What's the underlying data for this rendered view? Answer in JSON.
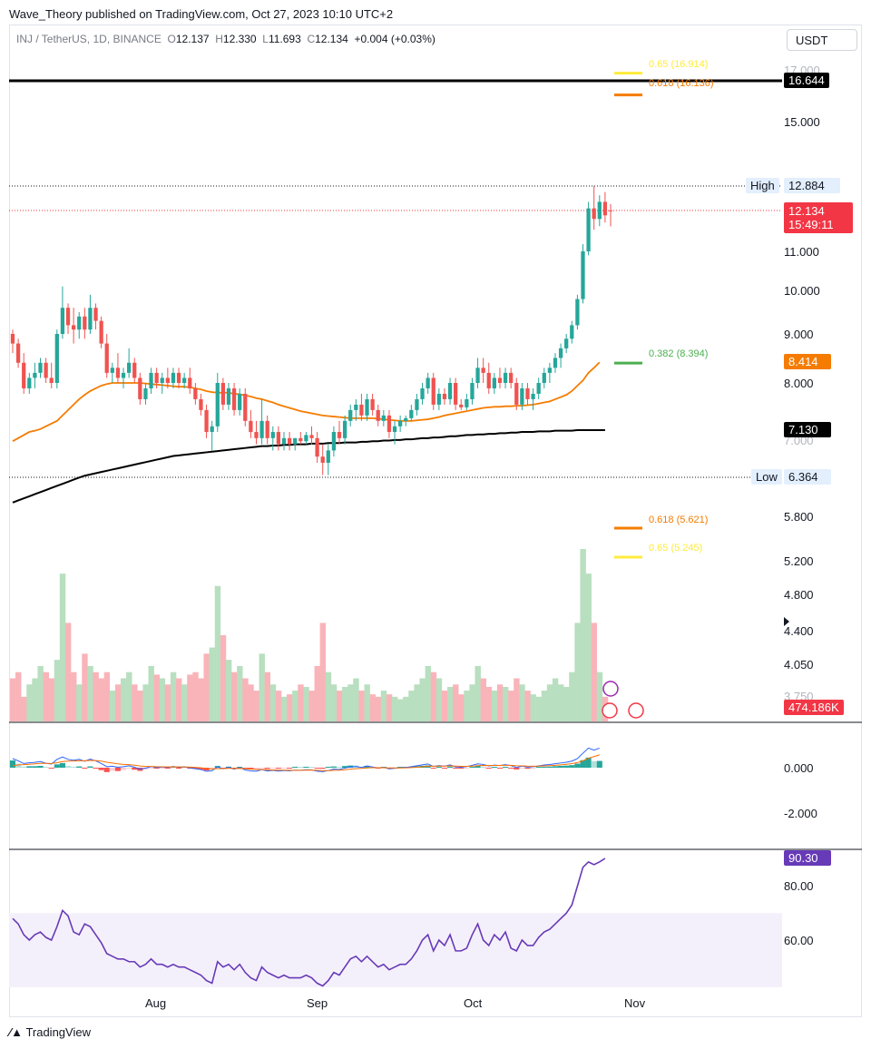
{
  "header": {
    "publisher": "Wave_Theory published on TradingView.com, Oct 27, 2023 10:10 UTC+2"
  },
  "legend": {
    "symbol": "INJ / TetherUS, 1D, BINANCE",
    "open": "12.137",
    "high": "12.330",
    "low": "11.693",
    "close": "12.134",
    "change": "+0.004 (+0.03%)"
  },
  "currency_button": "USDT",
  "footer": {
    "brand": "TradingView"
  },
  "colors": {
    "up": "#26a69a",
    "down": "#ef5350",
    "ema_fast": "#f57c00",
    "ema_slow": "#000000",
    "rsi": "#673ab7",
    "fib_gold": "#ffeb3b",
    "fib_orange": "#f57c00",
    "fib_green": "#4caf50"
  },
  "chart_data": [
    {
      "type": "candlestick",
      "x_axis": {
        "months": [
          "Aug",
          "Sep",
          "Oct",
          "Nov"
        ]
      },
      "y_axis": {
        "ticks": [
          "17.000",
          "15.000",
          "11.000",
          "10.000",
          "9.000",
          "8.000",
          "7.000",
          "5.800",
          "5.200",
          "4.800",
          "4.400",
          "4.050",
          "3.750"
        ]
      },
      "price_tags": {
        "resistance": "16.644",
        "high_label": "High",
        "high_value": "12.884",
        "last_price": "12.134",
        "countdown": "15:49:11",
        "ema_fast": "8.414",
        "ema_slow": "7.130",
        "low_label": "Low",
        "low_value": "6.364",
        "volume": "474.186K"
      },
      "fib_levels": [
        {
          "label": "0.65 (16.914)",
          "value": 16.914,
          "color": "#ffeb3b"
        },
        {
          "label": "0.618 (16.136)",
          "value": 16.136,
          "color": "#f57c00"
        },
        {
          "label": "0.382 (8.394)",
          "value": 8.394,
          "color": "#4caf50"
        },
        {
          "label": "0.618 (5.621)",
          "value": 5.621,
          "color": "#f57c00"
        },
        {
          "label": "0.65 (5.245)",
          "value": 5.245,
          "color": "#ffeb3b"
        }
      ],
      "horizontal_lines": {
        "resistance": 16.644,
        "high": 12.884,
        "low": 6.364,
        "last": 12.134
      },
      "candles": [
        [
          9.0,
          9.1,
          8.6,
          8.8
        ],
        [
          8.8,
          8.9,
          8.3,
          8.4
        ],
        [
          8.4,
          8.6,
          7.8,
          7.9
        ],
        [
          7.9,
          8.2,
          7.8,
          8.1
        ],
        [
          8.1,
          8.4,
          7.9,
          8.2
        ],
        [
          8.2,
          8.5,
          8.1,
          8.4
        ],
        [
          8.4,
          8.5,
          8.0,
          8.1
        ],
        [
          8.1,
          8.4,
          7.9,
          8.0
        ],
        [
          8.0,
          9.1,
          7.9,
          9.0
        ],
        [
          9.0,
          10.1,
          8.9,
          9.6
        ],
        [
          9.6,
          9.7,
          9.0,
          9.2
        ],
        [
          9.2,
          9.6,
          8.8,
          9.1
        ],
        [
          9.1,
          9.5,
          8.9,
          9.4
        ],
        [
          9.4,
          9.6,
          8.9,
          9.1
        ],
        [
          9.1,
          9.9,
          9.0,
          9.6
        ],
        [
          9.6,
          9.7,
          9.1,
          9.3
        ],
        [
          9.3,
          9.4,
          8.7,
          8.8
        ],
        [
          8.8,
          9.0,
          8.1,
          8.2
        ],
        [
          8.2,
          8.4,
          8.0,
          8.3
        ],
        [
          8.3,
          8.6,
          8.0,
          8.1
        ],
        [
          8.1,
          8.3,
          7.9,
          8.2
        ],
        [
          8.2,
          8.7,
          8.1,
          8.4
        ],
        [
          8.4,
          8.5,
          8.0,
          8.1
        ],
        [
          8.1,
          8.2,
          7.6,
          7.7
        ],
        [
          7.7,
          8.0,
          7.6,
          7.9
        ],
        [
          7.9,
          8.3,
          7.8,
          8.2
        ],
        [
          8.2,
          8.3,
          7.9,
          8.0
        ],
        [
          8.0,
          8.2,
          7.8,
          8.1
        ],
        [
          8.1,
          8.3,
          7.9,
          8.0
        ],
        [
          8.0,
          8.3,
          7.9,
          8.2
        ],
        [
          8.2,
          8.3,
          7.9,
          8.0
        ],
        [
          8.0,
          8.2,
          7.9,
          8.1
        ],
        [
          8.1,
          8.3,
          7.8,
          7.9
        ],
        [
          7.9,
          8.0,
          7.6,
          7.7
        ],
        [
          7.7,
          7.8,
          7.4,
          7.5
        ],
        [
          7.5,
          7.6,
          7.0,
          7.1
        ],
        [
          7.1,
          7.3,
          6.8,
          7.2
        ],
        [
          7.2,
          8.2,
          7.1,
          8.0
        ],
        [
          8.0,
          8.1,
          7.5,
          7.6
        ],
        [
          7.6,
          8.0,
          7.5,
          7.9
        ],
        [
          7.9,
          8.0,
          7.4,
          7.5
        ],
        [
          7.5,
          7.9,
          7.4,
          7.8
        ],
        [
          7.8,
          7.9,
          7.2,
          7.3
        ],
        [
          7.3,
          7.5,
          7.0,
          7.1
        ],
        [
          7.1,
          7.3,
          6.9,
          7.0
        ],
        [
          7.0,
          7.7,
          6.9,
          7.3
        ],
        [
          7.3,
          7.4,
          6.9,
          7.0
        ],
        [
          7.0,
          7.2,
          6.8,
          7.1
        ],
        [
          7.1,
          7.2,
          6.8,
          6.9
        ],
        [
          6.9,
          7.1,
          6.8,
          7.0
        ],
        [
          7.0,
          7.1,
          6.8,
          6.9
        ],
        [
          6.9,
          7.0,
          6.8,
          7.0
        ],
        [
          7.0,
          7.1,
          6.9,
          6.95
        ],
        [
          6.95,
          7.1,
          6.9,
          7.05
        ],
        [
          7.05,
          7.2,
          6.9,
          7.0
        ],
        [
          7.0,
          7.1,
          6.6,
          6.7
        ],
        [
          6.7,
          6.9,
          6.4,
          6.6
        ],
        [
          6.6,
          6.9,
          6.4,
          6.8
        ],
        [
          6.8,
          7.2,
          6.7,
          7.1
        ],
        [
          7.1,
          7.3,
          6.9,
          7.0
        ],
        [
          7.0,
          7.4,
          6.9,
          7.3
        ],
        [
          7.3,
          7.6,
          7.2,
          7.5
        ],
        [
          7.5,
          7.7,
          7.3,
          7.6
        ],
        [
          7.6,
          7.8,
          7.3,
          7.4
        ],
        [
          7.4,
          7.8,
          7.3,
          7.7
        ],
        [
          7.7,
          7.8,
          7.4,
          7.5
        ],
        [
          7.5,
          7.6,
          7.2,
          7.3
        ],
        [
          7.3,
          7.5,
          7.2,
          7.4
        ],
        [
          7.4,
          7.5,
          7.0,
          7.1
        ],
        [
          7.1,
          7.3,
          6.9,
          7.2
        ],
        [
          7.2,
          7.4,
          7.1,
          7.3
        ],
        [
          7.3,
          7.4,
          7.2,
          7.35
        ],
        [
          7.35,
          7.6,
          7.3,
          7.5
        ],
        [
          7.5,
          7.8,
          7.4,
          7.7
        ],
        [
          7.7,
          8.0,
          7.6,
          7.9
        ],
        [
          7.9,
          8.2,
          7.8,
          8.1
        ],
        [
          8.1,
          8.2,
          7.5,
          7.6
        ],
        [
          7.6,
          7.9,
          7.5,
          7.8
        ],
        [
          7.8,
          7.9,
          7.6,
          7.7
        ],
        [
          7.7,
          8.1,
          7.6,
          8.0
        ],
        [
          8.0,
          8.1,
          7.5,
          7.6
        ],
        [
          7.6,
          7.7,
          7.5,
          7.55
        ],
        [
          7.55,
          7.8,
          7.5,
          7.7
        ],
        [
          7.7,
          8.1,
          7.6,
          8.0
        ],
        [
          8.0,
          8.5,
          7.9,
          8.3
        ],
        [
          8.3,
          8.5,
          8.0,
          8.2
        ],
        [
          8.2,
          8.4,
          7.8,
          7.9
        ],
        [
          7.9,
          8.2,
          7.8,
          8.1
        ],
        [
          8.1,
          8.3,
          7.9,
          8.0
        ],
        [
          8.0,
          8.3,
          7.9,
          8.2
        ],
        [
          8.2,
          8.3,
          7.9,
          8.0
        ],
        [
          8.0,
          8.1,
          7.5,
          7.6
        ],
        [
          7.6,
          8.0,
          7.5,
          7.9
        ],
        [
          7.9,
          8.0,
          7.6,
          7.7
        ],
        [
          7.7,
          7.9,
          7.5,
          7.8
        ],
        [
          7.8,
          8.1,
          7.7,
          8.0
        ],
        [
          8.0,
          8.3,
          7.9,
          8.2
        ],
        [
          8.2,
          8.4,
          8.0,
          8.3
        ],
        [
          8.3,
          8.6,
          8.2,
          8.5
        ],
        [
          8.5,
          8.8,
          8.3,
          8.7
        ],
        [
          8.7,
          9.0,
          8.6,
          8.9
        ],
        [
          8.9,
          9.3,
          8.8,
          9.2
        ],
        [
          9.2,
          9.9,
          9.1,
          9.8
        ],
        [
          9.8,
          11.2,
          9.7,
          11.0
        ],
        [
          11.0,
          12.4,
          10.9,
          12.2
        ],
        [
          12.2,
          12.884,
          11.6,
          11.9
        ],
        [
          11.9,
          12.6,
          11.7,
          12.4
        ],
        [
          12.4,
          12.7,
          11.8,
          12.0
        ],
        [
          12.137,
          12.33,
          11.693,
          12.134
        ]
      ],
      "series": [
        {
          "name": "",
          "kind": "ema_fast",
          "values": [
            6.95,
            7.0,
            7.05,
            7.1,
            7.12,
            7.15,
            7.2,
            7.25,
            7.3,
            7.4,
            7.5,
            7.6,
            7.7,
            7.78,
            7.85,
            7.9,
            7.95,
            7.98,
            8.0,
            8.0,
            8.0,
            8.0,
            8.0,
            8.0,
            7.99,
            7.98,
            7.97,
            7.96,
            7.95,
            7.94,
            7.93,
            7.93,
            7.92,
            7.9,
            7.88,
            7.85,
            7.83,
            7.82,
            7.82,
            7.82,
            7.8,
            7.79,
            7.77,
            7.75,
            7.72,
            7.7,
            7.67,
            7.64,
            7.6,
            7.57,
            7.54,
            7.51,
            7.48,
            7.46,
            7.44,
            7.42,
            7.4,
            7.39,
            7.38,
            7.37,
            7.36,
            7.35,
            7.35,
            7.35,
            7.35,
            7.35,
            7.34,
            7.33,
            7.32,
            7.31,
            7.3,
            7.3,
            7.3,
            7.31,
            7.32,
            7.33,
            7.35,
            7.37,
            7.4,
            7.42,
            7.44,
            7.46,
            7.48,
            7.5,
            7.52,
            7.54,
            7.55,
            7.56,
            7.56,
            7.57,
            7.57,
            7.58,
            7.58,
            7.59,
            7.6,
            7.62,
            7.64,
            7.66,
            7.7,
            7.74,
            7.78,
            7.85,
            7.95,
            8.05,
            8.2,
            8.3,
            8.41
          ]
        },
        {
          "name": "",
          "kind": "ema_slow",
          "values": [
            6.0,
            6.03,
            6.06,
            6.09,
            6.12,
            6.15,
            6.18,
            6.21,
            6.24,
            6.27,
            6.3,
            6.33,
            6.36,
            6.39,
            6.41,
            6.43,
            6.45,
            6.47,
            6.49,
            6.51,
            6.53,
            6.55,
            6.57,
            6.59,
            6.61,
            6.63,
            6.65,
            6.67,
            6.69,
            6.71,
            6.72,
            6.73,
            6.74,
            6.75,
            6.76,
            6.77,
            6.78,
            6.79,
            6.8,
            6.81,
            6.82,
            6.83,
            6.84,
            6.85,
            6.86,
            6.87,
            6.87,
            6.88,
            6.88,
            6.89,
            6.89,
            6.9,
            6.9,
            6.9,
            6.91,
            6.91,
            6.91,
            6.92,
            6.92,
            6.92,
            6.93,
            6.93,
            6.93,
            6.94,
            6.94,
            6.95,
            6.95,
            6.96,
            6.96,
            6.97,
            6.97,
            6.98,
            6.98,
            6.99,
            7.0,
            7.0,
            7.01,
            7.01,
            7.02,
            7.03,
            7.03,
            7.04,
            7.05,
            7.05,
            7.06,
            7.06,
            7.07,
            7.07,
            7.08,
            7.08,
            7.09,
            7.09,
            7.1,
            7.1,
            7.1,
            7.11,
            7.11,
            7.11,
            7.12,
            7.12,
            7.12,
            7.12,
            7.13,
            7.13,
            7.13,
            7.13,
            7.13,
            7.13
          ]
        },
        {
          "name": "",
          "kind": "volume",
          "values": [
            35,
            40,
            20,
            30,
            35,
            45,
            40,
            35,
            50,
            120,
            80,
            40,
            30,
            55,
            45,
            40,
            35,
            40,
            25,
            30,
            35,
            40,
            30,
            25,
            30,
            45,
            38,
            35,
            30,
            40,
            35,
            30,
            38,
            40,
            35,
            55,
            60,
            110,
            70,
            50,
            40,
            45,
            35,
            30,
            25,
            55,
            40,
            30,
            25,
            20,
            22,
            25,
            30,
            28,
            25,
            45,
            80,
            40,
            30,
            25,
            28,
            30,
            35,
            25,
            30,
            22,
            20,
            25,
            22,
            20,
            18,
            20,
            25,
            30,
            35,
            45,
            40,
            35,
            25,
            28,
            30,
            22,
            25,
            30,
            45,
            35,
            28,
            25,
            30,
            28,
            25,
            35,
            30,
            25,
            22,
            20,
            25,
            30,
            35,
            30,
            28,
            40,
            80,
            140,
            120,
            80,
            40,
            20
          ]
        },
        {
          "name": "",
          "kind": "rsi",
          "values": [
            68,
            66,
            62,
            60,
            62,
            63,
            61,
            60,
            65,
            71,
            69,
            63,
            62,
            66,
            65,
            62,
            59,
            55,
            54,
            53,
            53,
            52,
            52,
            50,
            51,
            53,
            51,
            51,
            50,
            51,
            50,
            50,
            49,
            48,
            47,
            45,
            44,
            52,
            50,
            51,
            49,
            51,
            48,
            46,
            45,
            50,
            48,
            47,
            46,
            47,
            46,
            46,
            46,
            47,
            46,
            44,
            43,
            45,
            48,
            47,
            50,
            53,
            54,
            52,
            54,
            52,
            50,
            51,
            49,
            50,
            51,
            51,
            53,
            56,
            60,
            62,
            56,
            60,
            58,
            62,
            56,
            56,
            57,
            62,
            66,
            60,
            58,
            62,
            60,
            63,
            57,
            56,
            60,
            58,
            58,
            61,
            63,
            64,
            66,
            68,
            70,
            73,
            80,
            87,
            89,
            88,
            89,
            90.3
          ]
        }
      ],
      "macd_y_ticks": [
        "0.000",
        "-2.000"
      ],
      "rsi_y_ticks": [
        "80.00",
        "60.00"
      ],
      "rsi_value": "90.30"
    }
  ]
}
